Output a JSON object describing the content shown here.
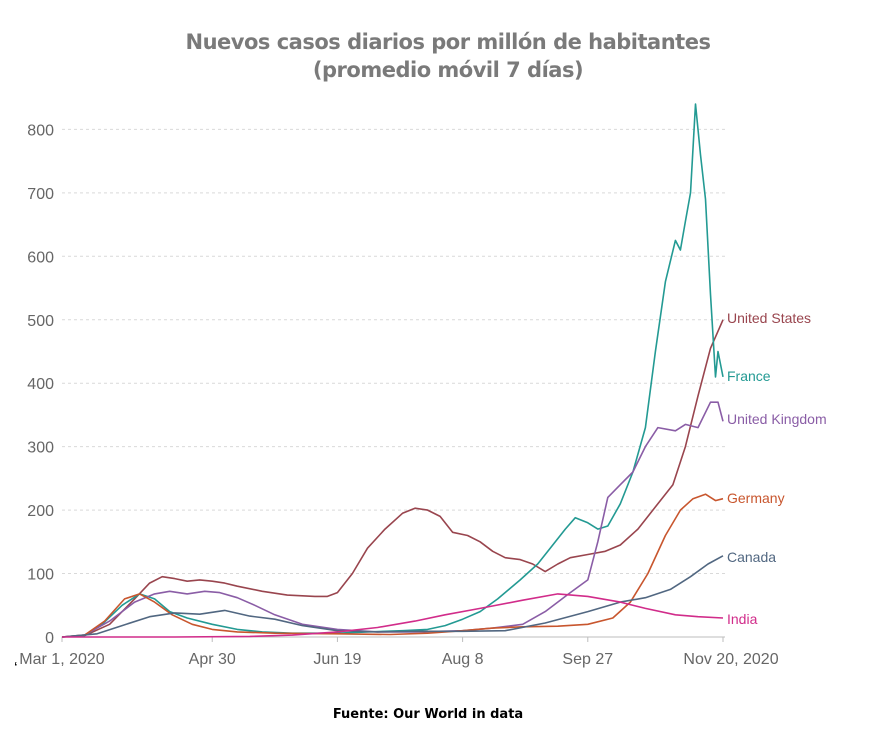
{
  "title_line1": "Nuevos casos diarios por millón de habitantes",
  "title_line2": "(promedio móvil 7 días)",
  "source": "Fuente: Our World in data",
  "stray_mark": "‘",
  "chart_data": {
    "type": "line",
    "title": "Nuevos casos diarios por millón de habitantes (promedio móvil 7 días)",
    "xlabel": "",
    "ylabel": "",
    "x_range": [
      "2020-03-01",
      "2020-11-20"
    ],
    "ylim": [
      0,
      850
    ],
    "y_ticks": [
      0,
      100,
      200,
      300,
      400,
      500,
      600,
      700,
      800
    ],
    "x_ticks": [
      {
        "date": "2020-03-01",
        "label": "Mar 1, 2020"
      },
      {
        "date": "2020-04-30",
        "label": "Apr 30"
      },
      {
        "date": "2020-06-19",
        "label": "Jun 19"
      },
      {
        "date": "2020-08-08",
        "label": "Aug 8"
      },
      {
        "date": "2020-09-27",
        "label": "Sep 27"
      },
      {
        "date": "2020-11-20",
        "label": "Nov 20, 2020"
      }
    ],
    "grid": true,
    "legend": "labels at line ends",
    "series": [
      {
        "name": "United States",
        "color": "#99454e",
        "points": [
          [
            "2020-03-01",
            0
          ],
          [
            "2020-03-10",
            2
          ],
          [
            "2020-03-20",
            20
          ],
          [
            "2020-03-30",
            60
          ],
          [
            "2020-04-05",
            85
          ],
          [
            "2020-04-10",
            95
          ],
          [
            "2020-04-15",
            92
          ],
          [
            "2020-04-20",
            88
          ],
          [
            "2020-04-25",
            90
          ],
          [
            "2020-04-30",
            88
          ],
          [
            "2020-05-05",
            85
          ],
          [
            "2020-05-10",
            80
          ],
          [
            "2020-05-20",
            72
          ],
          [
            "2020-05-30",
            66
          ],
          [
            "2020-06-05",
            65
          ],
          [
            "2020-06-10",
            64
          ],
          [
            "2020-06-15",
            64
          ],
          [
            "2020-06-19",
            70
          ],
          [
            "2020-06-25",
            100
          ],
          [
            "2020-07-01",
            140
          ],
          [
            "2020-07-08",
            170
          ],
          [
            "2020-07-15",
            195
          ],
          [
            "2020-07-20",
            203
          ],
          [
            "2020-07-25",
            200
          ],
          [
            "2020-07-30",
            190
          ],
          [
            "2020-08-04",
            165
          ],
          [
            "2020-08-10",
            160
          ],
          [
            "2020-08-15",
            150
          ],
          [
            "2020-08-20",
            135
          ],
          [
            "2020-08-25",
            125
          ],
          [
            "2020-08-31",
            122
          ],
          [
            "2020-09-05",
            115
          ],
          [
            "2020-09-10",
            103
          ],
          [
            "2020-09-15",
            115
          ],
          [
            "2020-09-20",
            125
          ],
          [
            "2020-09-27",
            130
          ],
          [
            "2020-10-04",
            135
          ],
          [
            "2020-10-10",
            145
          ],
          [
            "2020-10-17",
            170
          ],
          [
            "2020-10-24",
            205
          ],
          [
            "2020-10-31",
            240
          ],
          [
            "2020-11-05",
            300
          ],
          [
            "2020-11-10",
            380
          ],
          [
            "2020-11-15",
            455
          ],
          [
            "2020-11-20",
            500
          ]
        ]
      },
      {
        "name": "France",
        "color": "#239a93",
        "points": [
          [
            "2020-03-01",
            0
          ],
          [
            "2020-03-10",
            2
          ],
          [
            "2020-03-17",
            20
          ],
          [
            "2020-03-25",
            50
          ],
          [
            "2020-04-01",
            68
          ],
          [
            "2020-04-07",
            60
          ],
          [
            "2020-04-13",
            40
          ],
          [
            "2020-04-20",
            30
          ],
          [
            "2020-04-30",
            20
          ],
          [
            "2020-05-10",
            12
          ],
          [
            "2020-05-20",
            8
          ],
          [
            "2020-06-01",
            6
          ],
          [
            "2020-06-19",
            6
          ],
          [
            "2020-07-01",
            8
          ],
          [
            "2020-07-15",
            10
          ],
          [
            "2020-07-25",
            12
          ],
          [
            "2020-08-01",
            18
          ],
          [
            "2020-08-08",
            28
          ],
          [
            "2020-08-15",
            40
          ],
          [
            "2020-08-22",
            60
          ],
          [
            "2020-08-31",
            90
          ],
          [
            "2020-09-07",
            115
          ],
          [
            "2020-09-12",
            140
          ],
          [
            "2020-09-18",
            170
          ],
          [
            "2020-09-22",
            188
          ],
          [
            "2020-09-27",
            180
          ],
          [
            "2020-10-01",
            170
          ],
          [
            "2020-10-05",
            175
          ],
          [
            "2020-10-10",
            210
          ],
          [
            "2020-10-15",
            260
          ],
          [
            "2020-10-20",
            330
          ],
          [
            "2020-10-24",
            450
          ],
          [
            "2020-10-28",
            560
          ],
          [
            "2020-11-01",
            625
          ],
          [
            "2020-11-03",
            610
          ],
          [
            "2020-11-05",
            655
          ],
          [
            "2020-11-07",
            700
          ],
          [
            "2020-11-09",
            840
          ],
          [
            "2020-11-11",
            760
          ],
          [
            "2020-11-13",
            690
          ],
          [
            "2020-11-15",
            540
          ],
          [
            "2020-11-17",
            410
          ],
          [
            "2020-11-18",
            450
          ],
          [
            "2020-11-20",
            410
          ]
        ]
      },
      {
        "name": "United Kingdom",
        "color": "#8a5da6",
        "points": [
          [
            "2020-03-01",
            0
          ],
          [
            "2020-03-10",
            3
          ],
          [
            "2020-03-20",
            25
          ],
          [
            "2020-03-30",
            55
          ],
          [
            "2020-04-07",
            68
          ],
          [
            "2020-04-13",
            72
          ],
          [
            "2020-04-20",
            68
          ],
          [
            "2020-04-27",
            72
          ],
          [
            "2020-05-03",
            70
          ],
          [
            "2020-05-10",
            62
          ],
          [
            "2020-05-17",
            50
          ],
          [
            "2020-05-25",
            35
          ],
          [
            "2020-06-05",
            20
          ],
          [
            "2020-06-19",
            12
          ],
          [
            "2020-07-05",
            8
          ],
          [
            "2020-07-20",
            8
          ],
          [
            "2020-08-08",
            10
          ],
          [
            "2020-08-20",
            14
          ],
          [
            "2020-09-01",
            20
          ],
          [
            "2020-09-10",
            40
          ],
          [
            "2020-09-20",
            70
          ],
          [
            "2020-09-27",
            90
          ],
          [
            "2020-10-01",
            150
          ],
          [
            "2020-10-05",
            220
          ],
          [
            "2020-10-10",
            240
          ],
          [
            "2020-10-15",
            260
          ],
          [
            "2020-10-20",
            300
          ],
          [
            "2020-10-25",
            330
          ],
          [
            "2020-11-01",
            325
          ],
          [
            "2020-11-05",
            335
          ],
          [
            "2020-11-10",
            330
          ],
          [
            "2020-11-15",
            370
          ],
          [
            "2020-11-18",
            370
          ],
          [
            "2020-11-20",
            340
          ]
        ]
      },
      {
        "name": "Germany",
        "color": "#c8562e",
        "points": [
          [
            "2020-03-01",
            0
          ],
          [
            "2020-03-10",
            3
          ],
          [
            "2020-03-18",
            25
          ],
          [
            "2020-03-26",
            60
          ],
          [
            "2020-04-01",
            68
          ],
          [
            "2020-04-07",
            55
          ],
          [
            "2020-04-14",
            35
          ],
          [
            "2020-04-22",
            20
          ],
          [
            "2020-04-30",
            12
          ],
          [
            "2020-05-10",
            8
          ],
          [
            "2020-05-25",
            6
          ],
          [
            "2020-06-19",
            5
          ],
          [
            "2020-07-10",
            4
          ],
          [
            "2020-07-25",
            6
          ],
          [
            "2020-08-08",
            10
          ],
          [
            "2020-08-20",
            14
          ],
          [
            "2020-09-01",
            16
          ],
          [
            "2020-09-15",
            17
          ],
          [
            "2020-09-27",
            20
          ],
          [
            "2020-10-07",
            30
          ],
          [
            "2020-10-14",
            55
          ],
          [
            "2020-10-21",
            100
          ],
          [
            "2020-10-28",
            160
          ],
          [
            "2020-11-03",
            200
          ],
          [
            "2020-11-08",
            218
          ],
          [
            "2020-11-13",
            225
          ],
          [
            "2020-11-17",
            215
          ],
          [
            "2020-11-20",
            218
          ]
        ]
      },
      {
        "name": "Canada",
        "color": "#516781",
        "points": [
          [
            "2020-03-01",
            0
          ],
          [
            "2020-03-15",
            5
          ],
          [
            "2020-03-25",
            18
          ],
          [
            "2020-04-05",
            32
          ],
          [
            "2020-04-15",
            38
          ],
          [
            "2020-04-25",
            36
          ],
          [
            "2020-05-05",
            42
          ],
          [
            "2020-05-15",
            33
          ],
          [
            "2020-05-25",
            28
          ],
          [
            "2020-06-05",
            18
          ],
          [
            "2020-06-19",
            10
          ],
          [
            "2020-07-05",
            8
          ],
          [
            "2020-07-20",
            9
          ],
          [
            "2020-08-08",
            9
          ],
          [
            "2020-08-25",
            10
          ],
          [
            "2020-09-10",
            22
          ],
          [
            "2020-09-27",
            40
          ],
          [
            "2020-10-10",
            55
          ],
          [
            "2020-10-20",
            62
          ],
          [
            "2020-10-30",
            75
          ],
          [
            "2020-11-07",
            95
          ],
          [
            "2020-11-14",
            115
          ],
          [
            "2020-11-20",
            128
          ]
        ]
      },
      {
        "name": "India",
        "color": "#d12c8a",
        "points": [
          [
            "2020-03-01",
            0
          ],
          [
            "2020-04-15",
            0
          ],
          [
            "2020-05-15",
            1
          ],
          [
            "2020-06-01",
            3
          ],
          [
            "2020-06-19",
            8
          ],
          [
            "2020-07-05",
            15
          ],
          [
            "2020-07-20",
            25
          ],
          [
            "2020-08-01",
            35
          ],
          [
            "2020-08-15",
            45
          ],
          [
            "2020-09-01",
            58
          ],
          [
            "2020-09-15",
            68
          ],
          [
            "2020-09-27",
            64
          ],
          [
            "2020-10-10",
            55
          ],
          [
            "2020-10-20",
            45
          ],
          [
            "2020-11-01",
            35
          ],
          [
            "2020-11-10",
            32
          ],
          [
            "2020-11-20",
            30
          ]
        ]
      }
    ]
  }
}
